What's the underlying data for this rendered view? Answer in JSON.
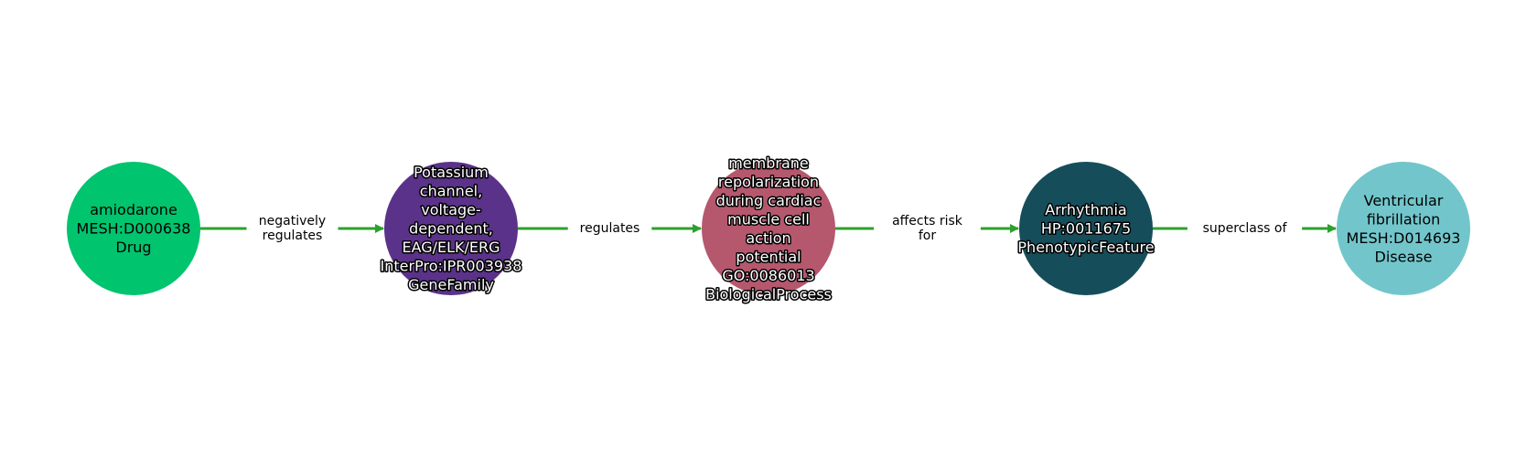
{
  "diagram": {
    "edge_color": "#2ca02c",
    "nodes": [
      {
        "id": "amiodarone",
        "lines": [
          "amiodarone",
          "MESH:D000638",
          "Drug"
        ],
        "fill": "#00c46e",
        "text_color": "#000000",
        "text_halo": false
      },
      {
        "id": "potassium-channel",
        "lines": [
          "Potassium",
          "channel,",
          "voltage-",
          "dependent,",
          "EAG/ELK/ERG",
          "InterPro:IPR003938",
          "GeneFamily"
        ],
        "fill": "#5b3289",
        "text_color": "#ffffff",
        "text_halo": true
      },
      {
        "id": "membrane-repolarization",
        "lines": [
          "membrane",
          "repolarization",
          "during cardiac",
          "muscle cell",
          "action",
          "potential",
          "GO:0086013",
          "BiologicalProcess"
        ],
        "fill": "#b5586d",
        "text_color": "#ffffff",
        "text_halo": true
      },
      {
        "id": "arrhythmia",
        "lines": [
          "Arrhythmia",
          "HP:0011675",
          "PhenotypicFeature"
        ],
        "fill": "#154e5a",
        "text_color": "#ffffff",
        "text_halo": true
      },
      {
        "id": "ventricular-fibrillation",
        "lines": [
          "Ventricular",
          "fibrillation",
          "MESH:D014693",
          "Disease"
        ],
        "fill": "#72c6cb",
        "text_color": "#000000",
        "text_halo": false
      }
    ],
    "edges": [
      {
        "from": 0,
        "to": 1,
        "label_lines": [
          "negatively",
          "regulates"
        ]
      },
      {
        "from": 1,
        "to": 2,
        "label_lines": [
          "regulates"
        ]
      },
      {
        "from": 2,
        "to": 3,
        "label_lines": [
          "affects risk",
          "for"
        ]
      },
      {
        "from": 3,
        "to": 4,
        "label_lines": [
          "superclass of"
        ]
      }
    ]
  }
}
